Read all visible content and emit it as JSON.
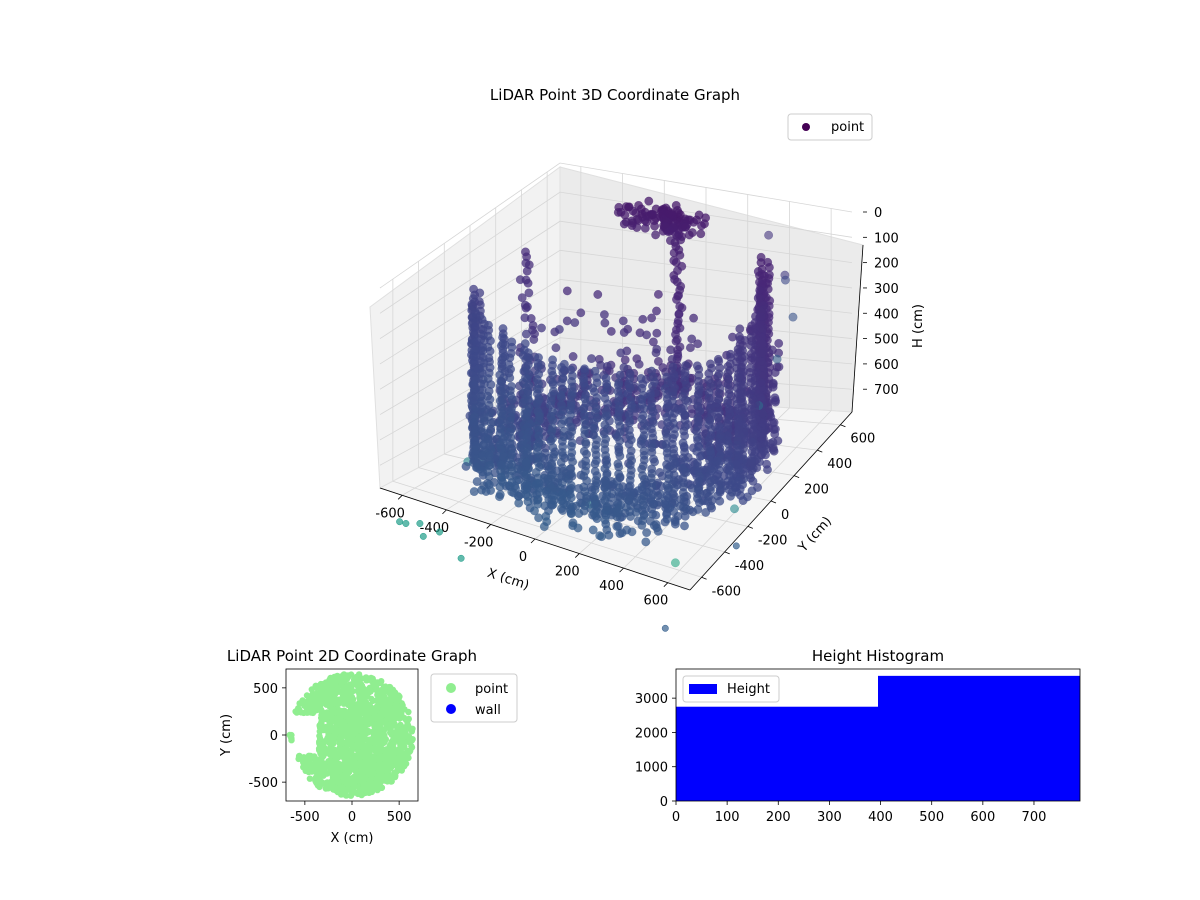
{
  "chart_data": [
    {
      "type": "scatter",
      "title": "LiDAR Point 3D Coordinate Graph",
      "xlabel": "X (cm)",
      "ylabel": "Y (cm)",
      "zlabel": "H (cm)",
      "xlim": [
        -700,
        700
      ],
      "ylim": [
        -700,
        700
      ],
      "zlim": [
        790,
        0
      ],
      "z_inverted": true,
      "x_ticks": [
        "-600",
        "-400",
        "-200",
        "0",
        "200",
        "400",
        "600"
      ],
      "y_ticks": [
        "-600",
        "-400",
        "-200",
        "0",
        "200",
        "400",
        "600"
      ],
      "z_ticks": [
        "0",
        "100",
        "200",
        "300",
        "400",
        "500",
        "600",
        "700"
      ],
      "grid": true,
      "colormap": "viridis",
      "legend": {
        "position": "top-right",
        "entries": [
          {
            "label": "point",
            "color": "#440154"
          }
        ]
      },
      "series": [
        {
          "name": "point",
          "description_points": "dense wall of points around a ring of radius ~600 cm, height 0-700 cm; outliers shown below",
          "outliers": [
            {
              "x": 380,
              "y": 560,
              "h": 60
            },
            {
              "x": 560,
              "y": 380,
              "h": 110
            },
            {
              "x": 480,
              "y": 520,
              "h": 180
            },
            {
              "x": 640,
              "y": 300,
              "h": 200
            },
            {
              "x": 620,
              "y": 200,
              "h": 320
            },
            {
              "x": 600,
              "y": 80,
              "h": 450
            },
            {
              "x": -560,
              "y": -120,
              "h": 780
            },
            {
              "x": -520,
              "y": -200,
              "h": 790
            },
            {
              "x": -460,
              "y": -160,
              "h": 790
            },
            {
              "x": -580,
              "y": -220,
              "h": 790
            },
            {
              "x": 40,
              "y": -320,
              "h": 790
            },
            {
              "x": 560,
              "y": -560,
              "h": 790
            },
            {
              "x": 660,
              "y": -240,
              "h": 700
            }
          ]
        }
      ]
    },
    {
      "type": "scatter",
      "title": "LiDAR Point 2D Coordinate Graph",
      "xlabel": "X (cm)",
      "ylabel": "Y (cm)",
      "xlim": [
        -700,
        700
      ],
      "ylim": [
        -700,
        700
      ],
      "x_ticks": [
        "-500",
        "0",
        "500"
      ],
      "y_ticks": [
        "-500",
        "0",
        "500"
      ],
      "legend": {
        "position": "outside-right",
        "entries": [
          {
            "label": "point",
            "color": "#90ee90"
          },
          {
            "label": "wall",
            "color": "#0000ff"
          }
        ]
      },
      "series": [
        {
          "name": "point",
          "color": "#90ee90",
          "description_points": "filled disk of radius ~650 cm centred at origin, notch on left side"
        },
        {
          "name": "wall",
          "color": "#0000ff",
          "x": [],
          "y": []
        }
      ]
    },
    {
      "type": "bar",
      "title": "Height Histogram",
      "xlim": [
        0,
        790
      ],
      "ylim": [
        0,
        3850
      ],
      "x_ticks": [
        "0",
        "100",
        "200",
        "300",
        "400",
        "500",
        "600",
        "700"
      ],
      "y_ticks": [
        "0",
        "1000",
        "2000",
        "3000"
      ],
      "legend": {
        "position": "top-left",
        "entries": [
          {
            "label": "Height",
            "color": "#0000ff"
          }
        ]
      },
      "series": [
        {
          "name": "Height",
          "color": "#0000ff",
          "bins": [
            {
              "x0": 0,
              "x1": 395,
              "count": 2750
            },
            {
              "x0": 395,
              "x1": 790,
              "count": 3650
            }
          ]
        }
      ]
    }
  ]
}
